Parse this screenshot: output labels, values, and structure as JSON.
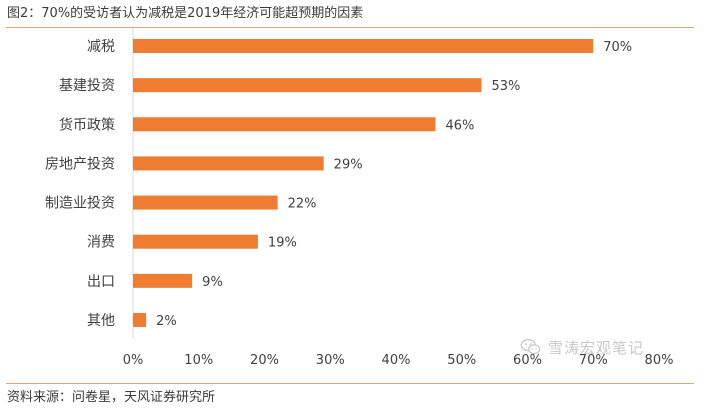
{
  "header": {
    "title": "图2：70%的受访者认为减税是2019年经济可能超预期的因素"
  },
  "footer": {
    "source": "资料来源：问卷星，天风证券研究所"
  },
  "watermark": {
    "text": "雪涛宏观笔记",
    "icon": "wechat-icon"
  },
  "colors": {
    "bar": "#ee7d31",
    "rule": "#d9a97a",
    "axis": "#d9d9d9"
  },
  "chart_data": {
    "type": "bar",
    "orientation": "horizontal",
    "categories": [
      "减税",
      "基建投资",
      "货币政策",
      "房地产投资",
      "制造业投资",
      "消费",
      "出口",
      "其他"
    ],
    "values": [
      70,
      53,
      46,
      29,
      22,
      19,
      9,
      2
    ],
    "data_labels": [
      "70%",
      "53%",
      "46%",
      "29%",
      "22%",
      "19%",
      "9%",
      "2%"
    ],
    "x_ticks": [
      "0%",
      "10%",
      "20%",
      "30%",
      "40%",
      "50%",
      "60%",
      "70%",
      "80%"
    ],
    "xlim": [
      0,
      80
    ],
    "grid": false,
    "legend": "none"
  }
}
